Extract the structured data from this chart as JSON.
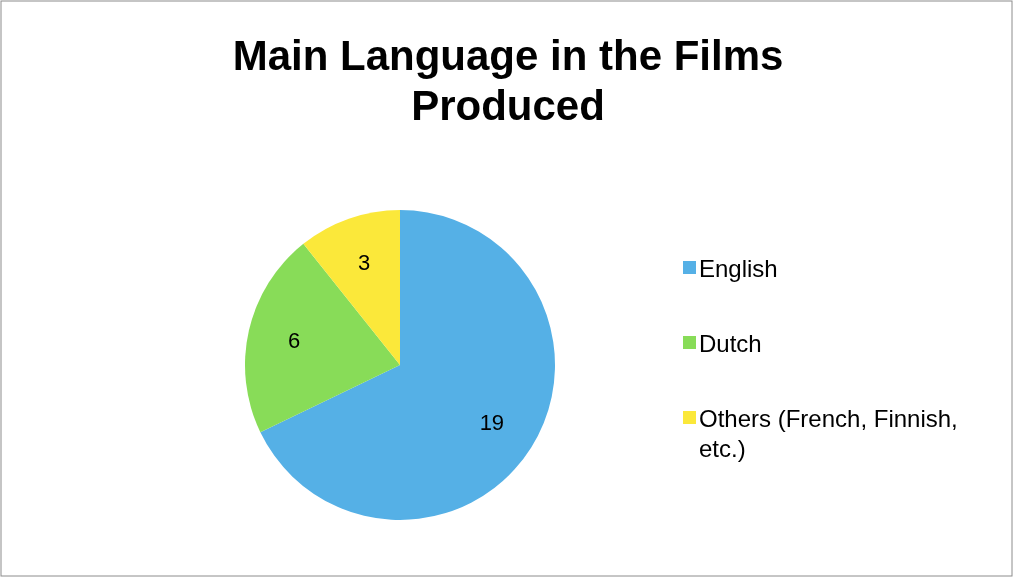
{
  "chart_data": {
    "type": "pie",
    "title": "Main Language in the Films Produced",
    "categories": [
      "English",
      "Dutch",
      "Others (French, Finnish, etc.)"
    ],
    "values": [
      19,
      6,
      3
    ],
    "colors": [
      "#55b0e6",
      "#88dc58",
      "#fbe83a"
    ],
    "data_labels": true,
    "legend": "right"
  }
}
